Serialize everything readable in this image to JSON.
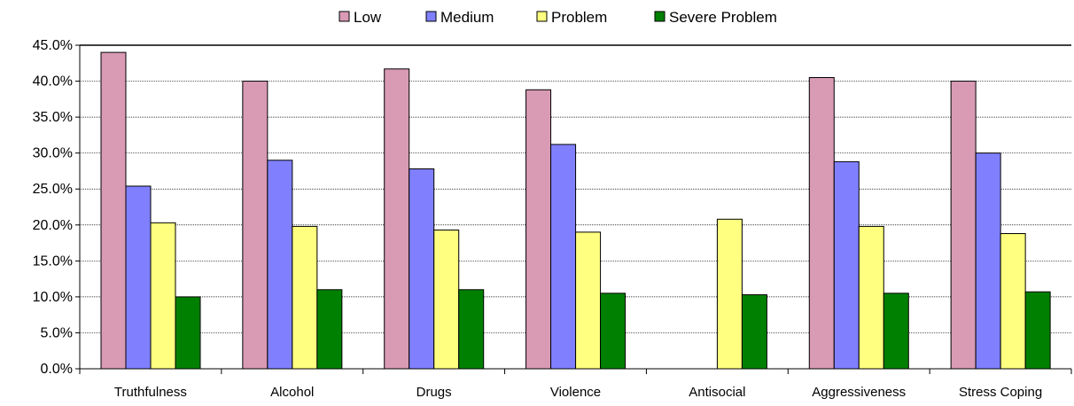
{
  "chart_data": {
    "type": "bar",
    "categories": [
      "Truthfulness",
      "Alcohol",
      "Drugs",
      "Violence",
      "Antisocial",
      "Aggressiveness",
      "Stress Coping"
    ],
    "series": [
      {
        "name": "Low",
        "color": "#d99ab4",
        "values": [
          44.0,
          40.0,
          41.7,
          38.8,
          0.0,
          40.5,
          40.0
        ]
      },
      {
        "name": "Medium",
        "color": "#8080ff",
        "values": [
          25.4,
          29.0,
          27.8,
          31.2,
          0.0,
          28.8,
          30.0
        ]
      },
      {
        "name": "Problem",
        "color": "#ffff80",
        "values": [
          20.3,
          19.8,
          19.3,
          19.0,
          20.8,
          19.8,
          18.8
        ]
      },
      {
        "name": "Severe Problem",
        "color": "#008000",
        "values": [
          10.0,
          11.0,
          11.0,
          10.5,
          10.3,
          10.5,
          10.7
        ]
      }
    ],
    "y_ticks": [
      "0.0%",
      "5.0%",
      "10.0%",
      "15.0%",
      "20.0%",
      "25.0%",
      "30.0%",
      "35.0%",
      "40.0%",
      "45.0%"
    ],
    "ylim": [
      0,
      45
    ],
    "grid": true,
    "legend_position": "top"
  }
}
